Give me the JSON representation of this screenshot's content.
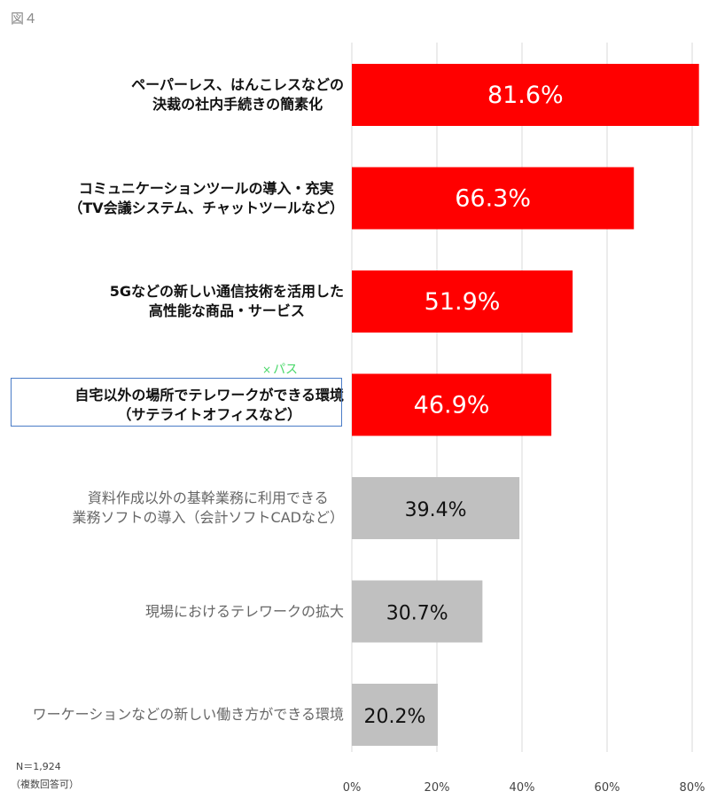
{
  "figure_label": "図４",
  "annotation": {
    "mark": "×",
    "text": "パス"
  },
  "notes": {
    "sample": "N＝1,924",
    "multiple": "（複数回答可）"
  },
  "colors": {
    "highlight": "#ff0000",
    "other": "#c0c0c0",
    "grid": "#d9d9d9",
    "box": "#4a7cc7"
  },
  "chart_data": {
    "type": "bar",
    "orientation": "horizontal",
    "categories": [
      [
        "ペーパーレス、はんこレスなどの",
        "決裁の社内手続きの簡素化"
      ],
      [
        "コミュニケーションツールの導入・充実",
        "（TV会議システム、チャットツールなど）"
      ],
      [
        "5Gなどの新しい通信技術を活用した",
        "高性能な商品・サービス"
      ],
      [
        "自宅以外の場所でテレワークができる環境",
        "（サテライトオフィスなど）"
      ],
      [
        "資料作成以外の基幹業務に利用できる",
        "業務ソフトの導入（会計ソフトCADなど）"
      ],
      [
        "現場におけるテレワークの拡大"
      ],
      [
        "ワーケーションなどの新しい働き方ができる環境"
      ]
    ],
    "values": [
      81.6,
      66.3,
      51.9,
      46.9,
      39.4,
      30.7,
      20.2
    ],
    "data_labels": [
      "81.6%",
      "66.3%",
      "51.9%",
      "46.9%",
      "39.4%",
      "30.7%",
      "20.2%"
    ],
    "highlighted": [
      true,
      true,
      true,
      true,
      false,
      false,
      false
    ],
    "xlim": [
      0,
      80
    ],
    "xticks": [
      0,
      20,
      40,
      60,
      80
    ],
    "xtick_labels": [
      "0%",
      "20%",
      "40%",
      "60%",
      "80%"
    ],
    "grid": true,
    "highlight_box_index": 3
  }
}
